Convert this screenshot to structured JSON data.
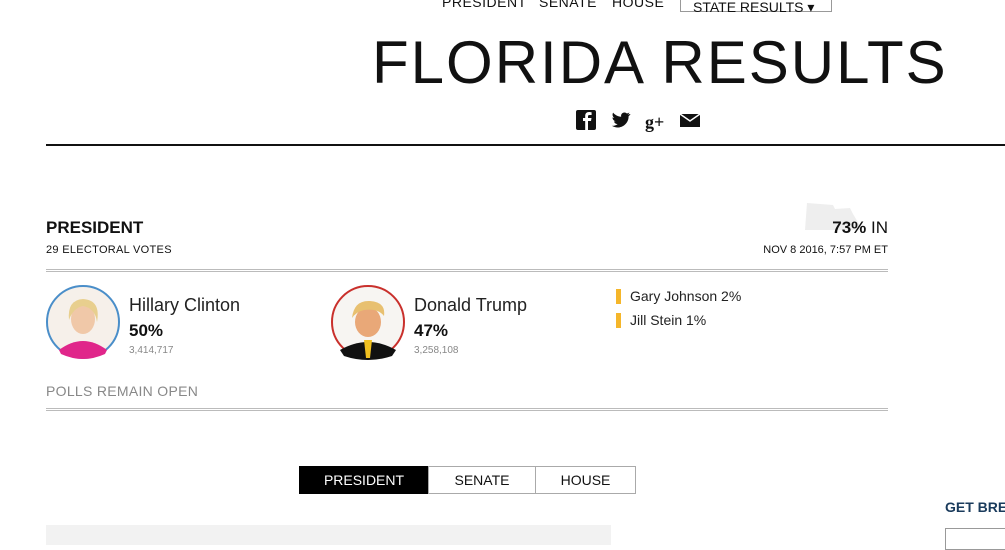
{
  "nav": {
    "links": [
      "PRESIDENT",
      "SENATE",
      "HOUSE"
    ],
    "dropdown": "STATE RESULTS"
  },
  "header": {
    "title": "FLORIDA RESULTS"
  },
  "race": {
    "title": "PRESIDENT",
    "subtitle": "29 ELECTORAL VOTES",
    "reporting_pct": "73%",
    "reporting_suffix": "IN",
    "updated": "NOV 8 2016, 7:57 PM ET",
    "candidates": [
      {
        "name": "Hillary Clinton",
        "pct": "50%",
        "votes": "3,414,717"
      },
      {
        "name": "Donald Trump",
        "pct": "47%",
        "votes": "3,258,108"
      }
    ],
    "others": [
      "Gary Johnson 2%",
      "Jill Stein 1%"
    ],
    "status": "POLLS REMAIN OPEN"
  },
  "tabs": [
    "PRESIDENT",
    "SENATE",
    "HOUSE"
  ],
  "sidebar": {
    "heading": "GET BRE"
  }
}
